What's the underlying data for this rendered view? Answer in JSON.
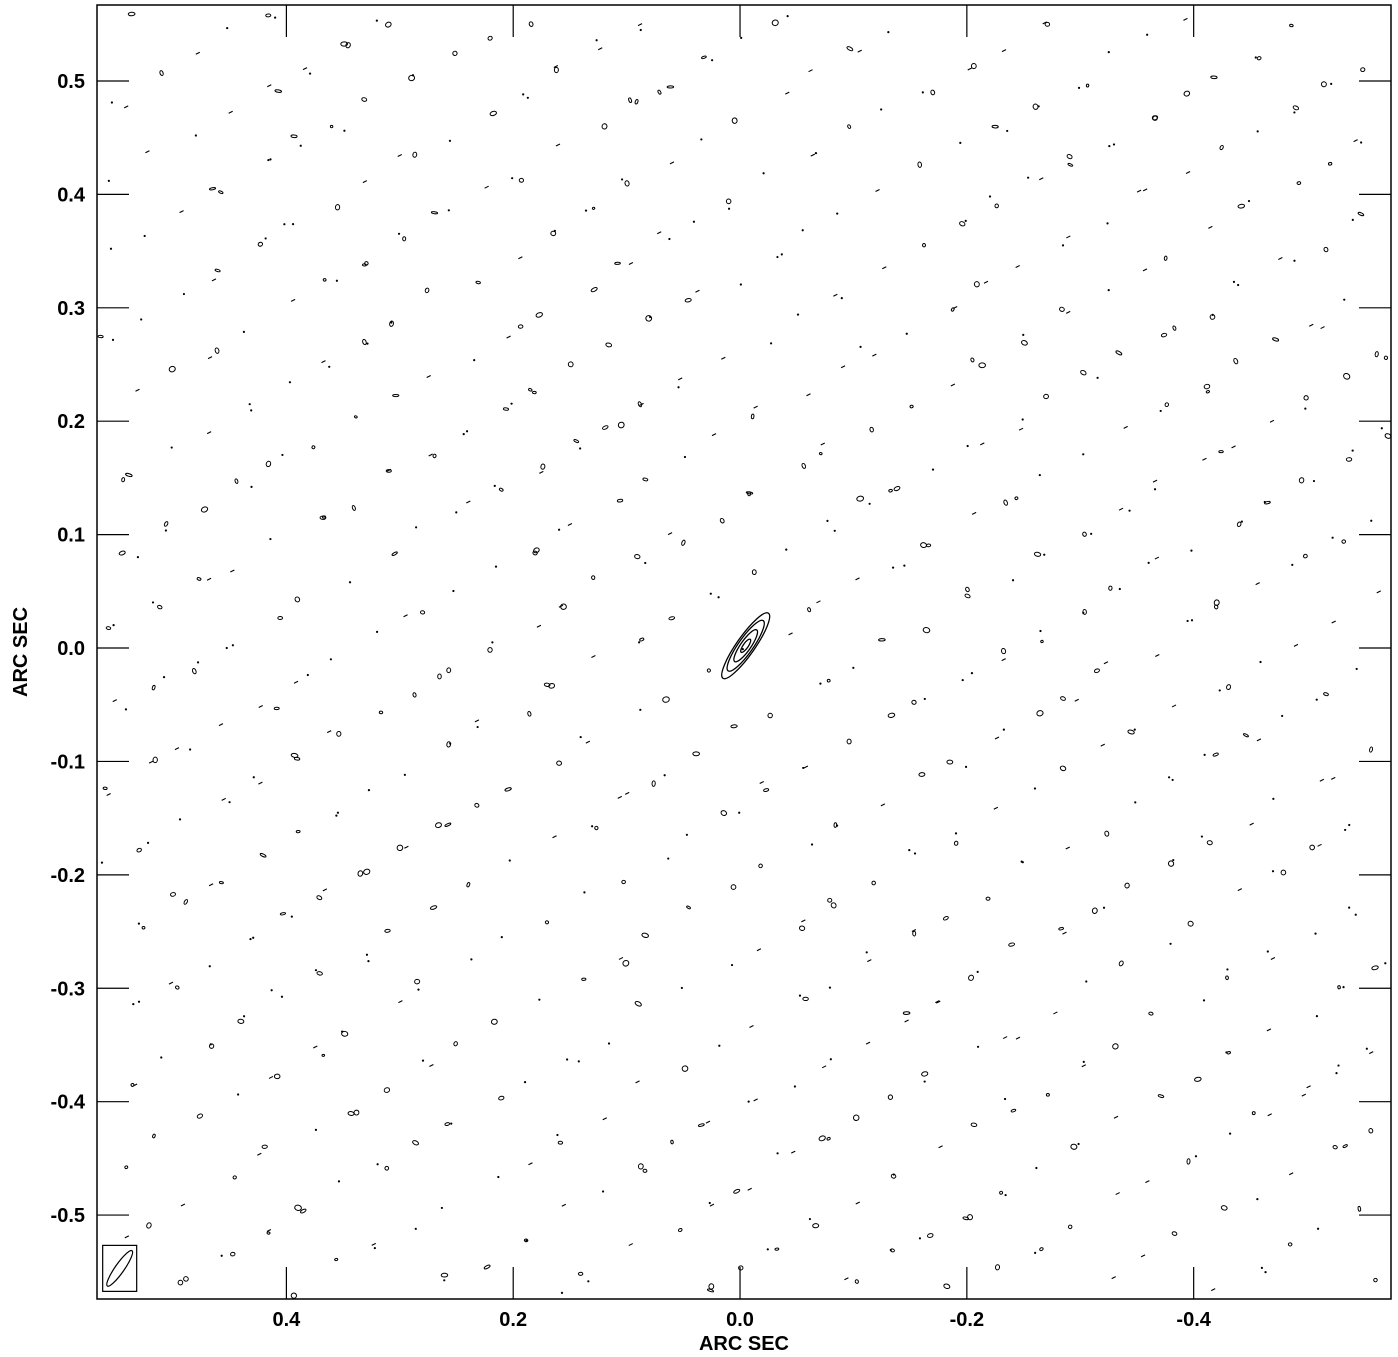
{
  "chart_data": {
    "type": "contour",
    "xlabel": "ARC SEC",
    "ylabel": "ARC SEC",
    "xlim": [
      0.567,
      -0.574
    ],
    "ylim": [
      -0.574,
      0.567
    ],
    "x_ticks": [
      0.4,
      0.2,
      0.0,
      -0.2,
      -0.4
    ],
    "x_tick_labels": [
      "0.4",
      "0.2",
      "0.0",
      "-0.2",
      "-0.4"
    ],
    "y_ticks": [
      0.5,
      0.4,
      0.3,
      0.2,
      0.1,
      0.0,
      -0.1,
      -0.2,
      -0.3,
      -0.4,
      -0.5
    ],
    "y_tick_labels": [
      "0.5",
      "0.4",
      "0.3",
      "0.2",
      "0.1",
      "0.0",
      "-0.1",
      "-0.2",
      "-0.3",
      "-0.4",
      "-0.5"
    ],
    "source": {
      "center": [
        -0.005,
        0.002
      ],
      "position_angle_deg": -35,
      "contours": [
        {
          "semi_major": 0.035,
          "semi_minor": 0.008
        },
        {
          "semi_major": 0.027,
          "semi_minor": 0.0065
        },
        {
          "semi_major": 0.017,
          "semi_minor": 0.0045
        },
        {
          "semi_major": 0.007,
          "semi_minor": 0.0022
        }
      ]
    },
    "beam": {
      "center": [
        0.547,
        -0.547
      ],
      "semi_major": 0.019,
      "semi_minor": 0.004,
      "position_angle_deg": -35
    },
    "background_noise": "diagonal lattice of small contour islands"
  }
}
